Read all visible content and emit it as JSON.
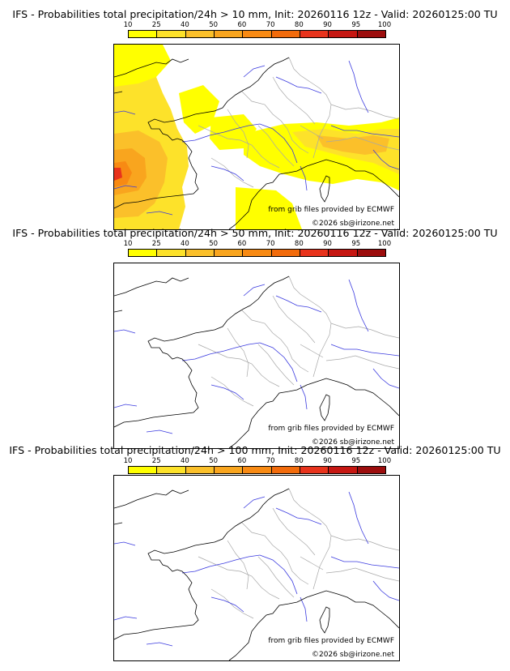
{
  "panels": [
    {
      "title": "IFS - Probabilities total precipitation/24h > 10 mm, Init: 20260116 12z - Valid: 20260125:00 TU",
      "threshold_mm": 10,
      "has_precip": true
    },
    {
      "title": "IFS - Probabilities total precipitation/24h > 50 mm, Init: 20260116 12z - Valid: 20260125:00 TU",
      "threshold_mm": 50,
      "has_precip": false
    },
    {
      "title": "IFS - Probabilities total precipitation/24h > 100 mm, Init: 20260116 12z - Valid: 20260125:00 TU",
      "threshold_mm": 100,
      "has_precip": false
    }
  ],
  "scale": {
    "ticks": [
      "10",
      "25",
      "40",
      "50",
      "60",
      "70",
      "80",
      "90",
      "95",
      "100"
    ],
    "colors": [
      "#ffff00",
      "#fde22a",
      "#fbc02a",
      "#f9a51e",
      "#f88a13",
      "#f26b0b",
      "#e8331c",
      "#c61712",
      "#9c0d0d",
      "#6b0606"
    ]
  },
  "credits": {
    "source": "from grib files provided by ECMWF",
    "copyright": "©2026 sb@irizone.net"
  },
  "colors": {
    "coast": "#000000",
    "rivers": "#3a3adf",
    "borders": "#a8a8a8"
  }
}
